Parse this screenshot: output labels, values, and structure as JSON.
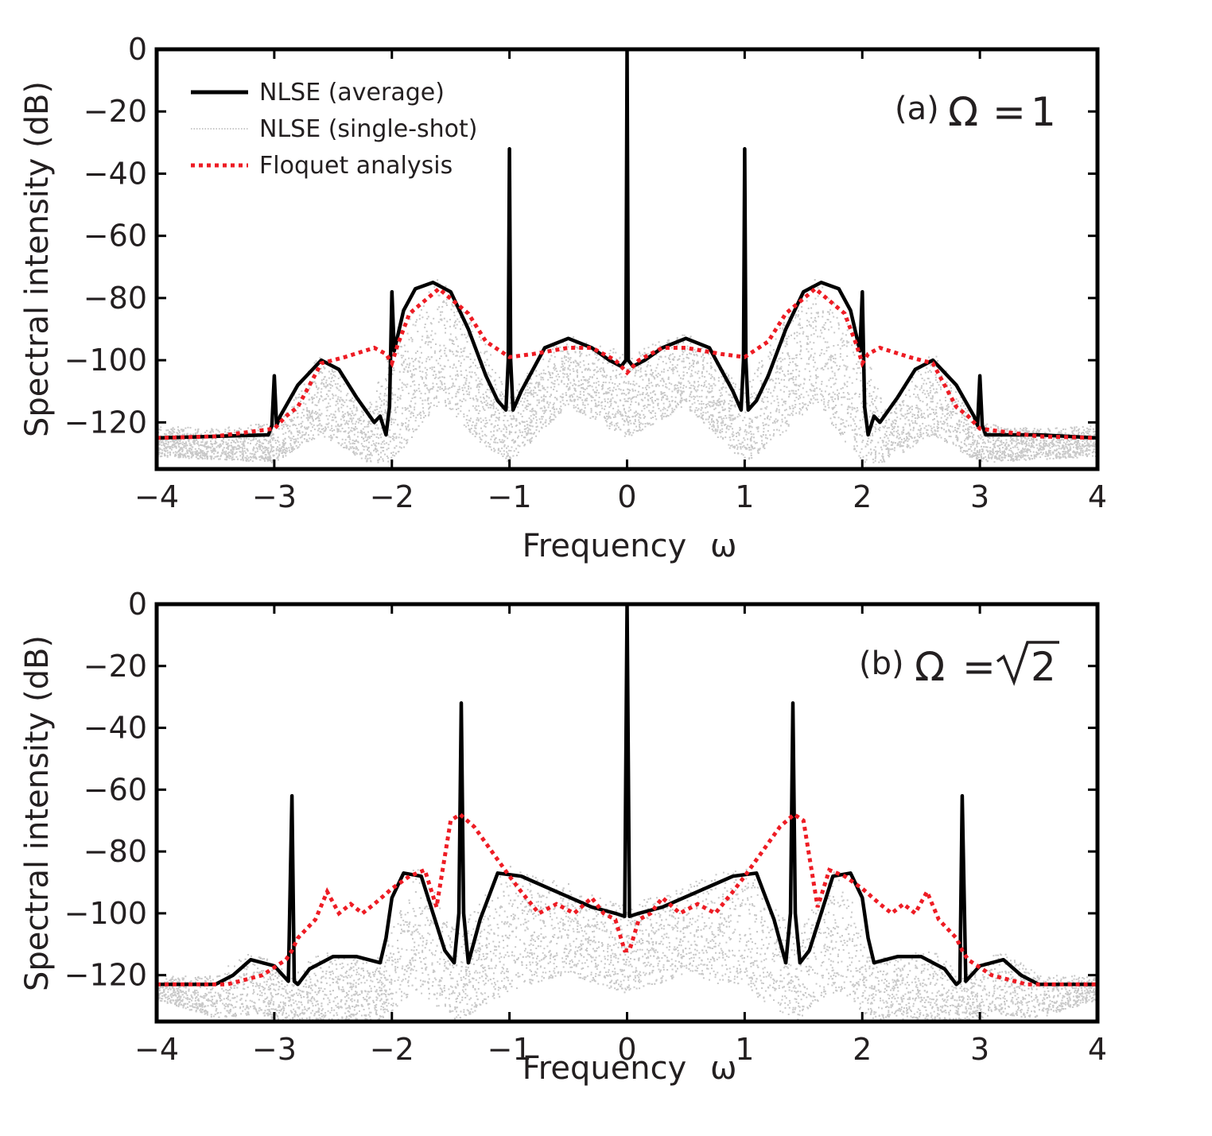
{
  "figure": {
    "panels": [
      {
        "id": "a",
        "panel_label": "(a)",
        "param_symbol": "Ω",
        "param_eq": "=",
        "param_value": "1",
        "param_sqrt": false
      },
      {
        "id": "b",
        "panel_label": "(b)",
        "param_symbol": "Ω",
        "param_eq": "=",
        "param_value": "2",
        "param_sqrt": true
      }
    ],
    "legend": {
      "average": "NLSE (average)",
      "single_shot": "NLSE (single-shot)",
      "floquet": "Floquet analysis"
    }
  },
  "chart_data": [
    {
      "type": "line",
      "panel": "a",
      "title": "(a) Ω = 1",
      "xlabel": "Frequency",
      "xlabel_symbol": "ω",
      "ylabel": "Spectral intensity (dB)",
      "xlim": [
        -4,
        4
      ],
      "ylim": [
        -135,
        0
      ],
      "xticks": [
        -4,
        -3,
        -2,
        -1,
        0,
        1,
        2,
        3,
        4
      ],
      "xtick_labels": [
        "−4",
        "−3",
        "−2",
        "−1",
        "0",
        "1",
        "2",
        "3",
        "4"
      ],
      "yticks": [
        0,
        -20,
        -40,
        -60,
        -80,
        -100,
        -120
      ],
      "ytick_labels": [
        "0",
        "−20",
        "−40",
        "−60",
        "−80",
        "−100",
        "−120"
      ],
      "colors": {
        "average": "#000000",
        "single_shot": "#c8c8c8",
        "floquet": "#ee1c24"
      },
      "series": [
        {
          "name": "NLSE (average)",
          "style": "solid",
          "x": [
            -4.0,
            -3.5,
            -3.05,
            -3.02,
            -3.0,
            -2.98,
            -2.95,
            -2.8,
            -2.6,
            -2.45,
            -2.3,
            -2.15,
            -2.1,
            -2.05,
            -2.02,
            -2.0,
            -1.98,
            -1.9,
            -1.8,
            -1.65,
            -1.5,
            -1.35,
            -1.2,
            -1.1,
            -1.03,
            -1.01,
            -1.0,
            -0.99,
            -0.97,
            -0.9,
            -0.7,
            -0.5,
            -0.3,
            -0.15,
            -0.05,
            -0.01,
            0.0,
            0.01,
            0.05,
            0.15,
            0.3,
            0.5,
            0.7,
            0.9,
            0.97,
            0.99,
            1.0,
            1.01,
            1.03,
            1.1,
            1.2,
            1.35,
            1.5,
            1.65,
            1.8,
            1.9,
            1.98,
            2.0,
            2.02,
            2.05,
            2.1,
            2.15,
            2.3,
            2.45,
            2.6,
            2.8,
            2.95,
            2.98,
            3.0,
            3.02,
            3.05,
            3.5,
            4.0
          ],
          "y": [
            -125,
            -124.5,
            -124,
            -121,
            -105,
            -121,
            -118,
            -108,
            -100,
            -103,
            -112,
            -120,
            -118,
            -124,
            -115,
            -78,
            -97,
            -84,
            -77,
            -75,
            -78,
            -90,
            -105,
            -113,
            -116,
            -100,
            -32,
            -100,
            -116,
            -110,
            -96,
            -93,
            -96,
            -100,
            -102,
            -100,
            0,
            -100,
            -102,
            -100,
            -96,
            -93,
            -96,
            -110,
            -116,
            -100,
            -32,
            -100,
            -116,
            -113,
            -105,
            -90,
            -78,
            -75,
            -77,
            -84,
            -97,
            -78,
            -115,
            -124,
            -118,
            -120,
            -112,
            -103,
            -100,
            -108,
            -118,
            -121,
            -105,
            -121,
            -124,
            -124,
            -125
          ]
        },
        {
          "name": "Floquet analysis",
          "style": "dotted",
          "x": [
            -4.0,
            -3.5,
            -3.0,
            -2.9,
            -2.8,
            -2.6,
            -2.4,
            -2.15,
            -2.05,
            -2.0,
            -1.95,
            -1.85,
            -1.6,
            -1.35,
            -1.2,
            -1.0,
            -0.8,
            -0.5,
            -0.3,
            -0.1,
            0.0,
            0.1,
            0.3,
            0.5,
            0.8,
            1.0,
            1.2,
            1.35,
            1.6,
            1.85,
            1.95,
            2.0,
            2.05,
            2.15,
            2.4,
            2.6,
            2.8,
            2.9,
            3.0,
            3.5,
            4.0
          ],
          "y": [
            -125,
            -124.5,
            -122,
            -118,
            -115,
            -101,
            -99,
            -96,
            -98,
            -101,
            -95,
            -85,
            -77,
            -85,
            -94,
            -99,
            -98,
            -96,
            -96,
            -100,
            -104,
            -100,
            -96,
            -96,
            -98,
            -99,
            -94,
            -85,
            -77,
            -85,
            -95,
            -101,
            -98,
            -96,
            -99,
            -101,
            -115,
            -118,
            -122,
            -124.5,
            -125
          ]
        },
        {
          "name": "NLSE (single-shot)",
          "style": "scatter-band",
          "x": [
            -4.0,
            -3.5,
            -3.0,
            -2.6,
            -2.2,
            -2.0,
            -1.6,
            -1.2,
            -1.0,
            -0.5,
            0.0,
            0.5,
            1.0,
            1.2,
            1.6,
            2.0,
            2.2,
            2.6,
            3.0,
            3.5,
            4.0
          ],
          "y_upper": [
            -121,
            -122,
            -120,
            -97,
            -115,
            -95,
            -72,
            -95,
            -110,
            -90,
            -98,
            -90,
            -110,
            -95,
            -72,
            -95,
            -115,
            -97,
            -120,
            -122,
            -121
          ],
          "y_lower": [
            -131,
            -132,
            -133,
            -124,
            -133,
            -133,
            -114,
            -128,
            -133,
            -115,
            -125,
            -115,
            -133,
            -128,
            -114,
            -133,
            -133,
            -124,
            -133,
            -132,
            -131
          ]
        }
      ]
    },
    {
      "type": "line",
      "panel": "b",
      "title": "(b) Ω = √2",
      "xlabel": "Frequency",
      "xlabel_symbol": "ω",
      "ylabel": "Spectral intensity (dB)",
      "xlim": [
        -4,
        4
      ],
      "ylim": [
        -135,
        0
      ],
      "xticks": [
        -4,
        -3,
        -2,
        -1,
        0,
        1,
        2,
        3,
        4
      ],
      "xtick_labels": [
        "−4",
        "−3",
        "−2",
        "−1",
        "0",
        "1",
        "2",
        "3",
        "4"
      ],
      "yticks": [
        0,
        -20,
        -40,
        -60,
        -80,
        -100,
        -120
      ],
      "ytick_labels": [
        "0",
        "−20",
        "−40",
        "−60",
        "−80",
        "−100",
        "−120"
      ],
      "colors": {
        "average": "#000000",
        "single_shot": "#c8c8c8",
        "floquet": "#ee1c24"
      },
      "series": [
        {
          "name": "NLSE (average)",
          "style": "solid",
          "x": [
            -4.0,
            -3.5,
            -3.35,
            -3.2,
            -3.0,
            -2.88,
            -2.85,
            -2.83,
            -2.8,
            -2.7,
            -2.5,
            -2.3,
            -2.1,
            -2.05,
            -2.0,
            -1.9,
            -1.75,
            -1.65,
            -1.55,
            -1.47,
            -1.43,
            -1.41,
            -1.39,
            -1.35,
            -1.25,
            -1.1,
            -0.9,
            -0.6,
            -0.3,
            -0.1,
            -0.02,
            0.0,
            0.02,
            0.1,
            0.3,
            0.6,
            0.9,
            1.1,
            1.25,
            1.35,
            1.39,
            1.41,
            1.43,
            1.47,
            1.55,
            1.65,
            1.75,
            1.9,
            2.0,
            2.05,
            2.1,
            2.3,
            2.5,
            2.7,
            2.8,
            2.83,
            2.85,
            2.88,
            3.0,
            3.2,
            3.35,
            3.5,
            4.0
          ],
          "y": [
            -123,
            -123,
            -120,
            -115,
            -117,
            -122,
            -62,
            -122,
            -123,
            -118,
            -114,
            -114,
            -116,
            -108,
            -95,
            -87,
            -88,
            -100,
            -112,
            -116,
            -100,
            -32,
            -100,
            -116,
            -102,
            -87,
            -88,
            -93,
            -98,
            -100,
            -101,
            0,
            -101,
            -100,
            -98,
            -93,
            -88,
            -87,
            -102,
            -116,
            -100,
            -32,
            -100,
            -116,
            -112,
            -100,
            -88,
            -87,
            -95,
            -108,
            -116,
            -114,
            -114,
            -118,
            -123,
            -122,
            -62,
            -122,
            -117,
            -115,
            -120,
            -123,
            -123
          ]
        },
        {
          "name": "Floquet analysis",
          "style": "dotted",
          "x": [
            -4.0,
            -3.4,
            -3.1,
            -2.9,
            -2.85,
            -2.8,
            -2.65,
            -2.55,
            -2.45,
            -2.35,
            -2.25,
            -2.15,
            -2.0,
            -1.85,
            -1.72,
            -1.62,
            -1.5,
            -1.42,
            -1.3,
            -1.15,
            -1.0,
            -0.9,
            -0.75,
            -0.6,
            -0.45,
            -0.3,
            -0.2,
            -0.1,
            -0.02,
            0.0,
            0.02,
            0.1,
            0.2,
            0.3,
            0.45,
            0.6,
            0.75,
            0.9,
            1.0,
            1.15,
            1.3,
            1.42,
            1.5,
            1.62,
            1.72,
            1.85,
            2.0,
            2.15,
            2.25,
            2.35,
            2.45,
            2.55,
            2.65,
            2.8,
            2.85,
            2.9,
            3.1,
            3.4,
            4.0
          ],
          "y": [
            -123,
            -123,
            -120,
            -115,
            -112,
            -108,
            -102,
            -93,
            -100,
            -97,
            -100,
            -97,
            -92,
            -88,
            -86,
            -98,
            -70,
            -68,
            -72,
            -80,
            -88,
            -93,
            -100,
            -97,
            -100,
            -95,
            -100,
            -102,
            -112,
            -112,
            -112,
            -102,
            -100,
            -95,
            -100,
            -97,
            -100,
            -93,
            -88,
            -80,
            -72,
            -68,
            -70,
            -98,
            -86,
            -88,
            -92,
            -97,
            -100,
            -97,
            -100,
            -93,
            -102,
            -108,
            -112,
            -115,
            -120,
            -123,
            -123
          ]
        },
        {
          "name": "NLSE (single-shot)",
          "style": "scatter-band",
          "x": [
            -4.0,
            -3.5,
            -3.2,
            -2.85,
            -2.6,
            -2.1,
            -1.8,
            -1.43,
            -1.0,
            -0.5,
            0.0,
            0.5,
            1.0,
            1.43,
            1.8,
            2.1,
            2.6,
            2.85,
            3.2,
            3.5,
            4.0
          ],
          "y_upper": [
            -120,
            -120,
            -111,
            -120,
            -112,
            -114,
            -84,
            -105,
            -84,
            -90,
            -97,
            -90,
            -84,
            -105,
            -84,
            -114,
            -112,
            -120,
            -111,
            -120,
            -120
          ],
          "y_lower": [
            -128,
            -134,
            -133,
            -135,
            -135,
            -135,
            -125,
            -135,
            -125,
            -120,
            -126,
            -120,
            -125,
            -135,
            -125,
            -135,
            -135,
            -135,
            -133,
            -134,
            -128
          ]
        }
      ]
    }
  ]
}
